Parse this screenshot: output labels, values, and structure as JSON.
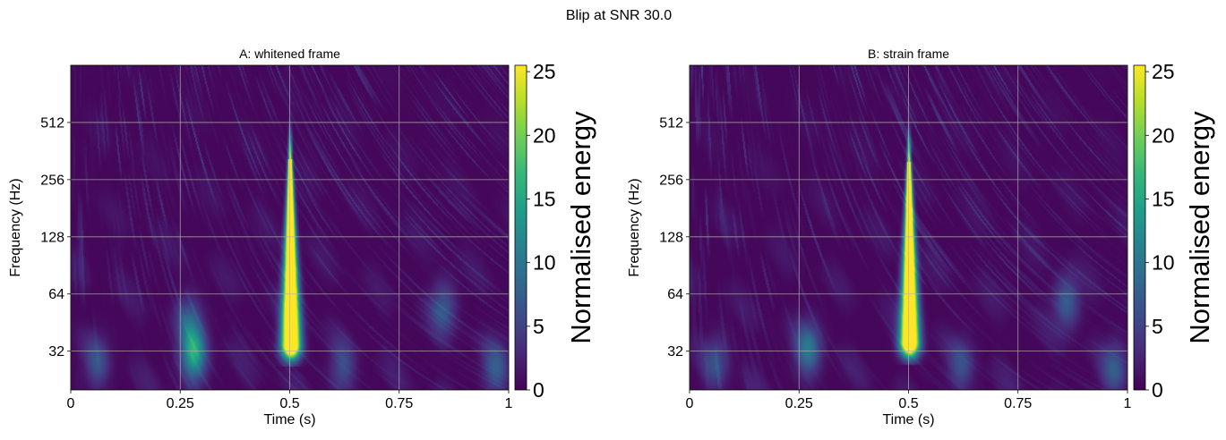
{
  "suptitle": "Blip at SNR 30.0",
  "colors": {
    "viridis": [
      "#440154",
      "#482878",
      "#3e4a89",
      "#31688e",
      "#26828e",
      "#1f9e89",
      "#35b779",
      "#6ece58",
      "#b5de2b",
      "#fde725"
    ],
    "gridline": "#b0b0b0"
  },
  "chart_data": [
    {
      "type": "heatmap",
      "title": "A: whitened frame",
      "xlabel": "Time (s)",
      "ylabel": "Frequency (Hz)",
      "xlim": [
        0,
        1
      ],
      "ylim": [
        20,
        1024
      ],
      "yscale": "log2",
      "x_ticks": [
        0,
        0.25,
        0.5,
        0.75,
        1
      ],
      "x_tick_labels": [
        "0",
        "0.25",
        "0.5",
        "0.75",
        "1"
      ],
      "y_ticks": [
        32,
        64,
        128,
        256,
        512
      ],
      "y_tick_labels": [
        "32",
        "64",
        "128",
        "256",
        "512"
      ],
      "grid": true,
      "colormap": "viridis",
      "colorbar": {
        "label": "Normalised energy",
        "range": [
          0,
          25.5
        ],
        "ticks": [
          0,
          5,
          10,
          15,
          20,
          25
        ],
        "tick_labels": [
          "0",
          "5",
          "10",
          "15",
          "20",
          "25"
        ]
      },
      "features": [
        {
          "kind": "blip",
          "t": 0.5,
          "f_low": 35,
          "f_high": 330,
          "peak": 25.5
        },
        {
          "kind": "blob",
          "t": 0.28,
          "f": 31,
          "energy": 14
        },
        {
          "kind": "blob",
          "t": 0.27,
          "f": 46,
          "energy": 6
        },
        {
          "kind": "blob",
          "t": 0.06,
          "f": 28,
          "energy": 5
        },
        {
          "kind": "blob",
          "t": 0.85,
          "f": 55,
          "energy": 6
        },
        {
          "kind": "blob",
          "t": 0.97,
          "f": 26,
          "energy": 6
        },
        {
          "kind": "blob",
          "t": 0.62,
          "f": 26,
          "energy": 5
        }
      ]
    },
    {
      "type": "heatmap",
      "title": "B: strain frame",
      "xlabel": "Time (s)",
      "ylabel": "Frequency (Hz)",
      "xlim": [
        0,
        1
      ],
      "ylim": [
        20,
        1024
      ],
      "yscale": "log2",
      "x_ticks": [
        0,
        0.25,
        0.5,
        0.75,
        1
      ],
      "x_tick_labels": [
        "0",
        "0.25",
        "0.5",
        "0.75",
        "1"
      ],
      "y_ticks": [
        32,
        64,
        128,
        256,
        512
      ],
      "y_tick_labels": [
        "32",
        "64",
        "128",
        "256",
        "512"
      ],
      "grid": true,
      "colormap": "viridis",
      "colorbar": {
        "label": "Normalised energy",
        "range": [
          0,
          25.5
        ],
        "ticks": [
          0,
          5,
          10,
          15,
          20,
          25
        ],
        "tick_labels": [
          "0",
          "5",
          "10",
          "15",
          "20",
          "25"
        ]
      },
      "features": [
        {
          "kind": "blip",
          "t": 0.5,
          "f_low": 36,
          "f_high": 320,
          "peak": 25.5
        },
        {
          "kind": "blob",
          "t": 0.27,
          "f": 33,
          "energy": 9
        },
        {
          "kind": "blob",
          "t": 0.86,
          "f": 58,
          "energy": 7
        },
        {
          "kind": "blob",
          "t": 0.06,
          "f": 28,
          "energy": 5
        },
        {
          "kind": "blob",
          "t": 0.97,
          "f": 26,
          "energy": 6
        },
        {
          "kind": "blob",
          "t": 0.62,
          "f": 27,
          "energy": 5
        }
      ]
    }
  ]
}
